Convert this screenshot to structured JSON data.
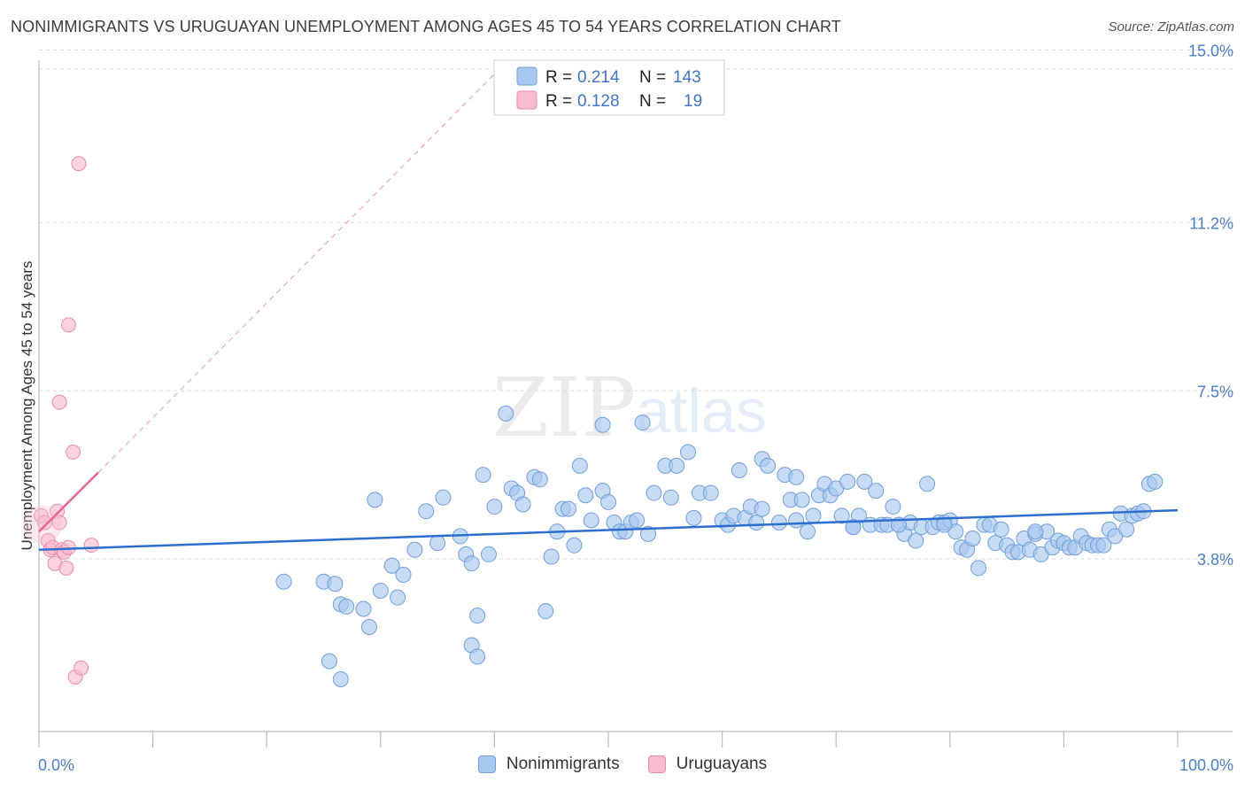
{
  "header": {
    "title": "NONIMMIGRANTS VS URUGUAYAN UNEMPLOYMENT AMONG AGES 45 TO 54 YEARS CORRELATION CHART",
    "source": "Source: ZipAtlas.com"
  },
  "watermark": {
    "zip": "ZIP",
    "atlas": "atlas"
  },
  "legend": {
    "rows": [
      {
        "r_label": "R =",
        "r_value": "0.214",
        "n_label": "N =",
        "n_value": "143"
      },
      {
        "r_label": "R =",
        "r_value": "0.128",
        "n_label": "N =",
        "n_value": "19"
      }
    ]
  },
  "bottom_legend": {
    "items": [
      {
        "label": "Nonimmigrants"
      },
      {
        "label": "Uruguayans"
      }
    ]
  },
  "chart_data": {
    "type": "scatter",
    "title": "NONIMMIGRANTS VS URUGUAYAN UNEMPLOYMENT AMONG AGES 45 TO 54 YEARS CORRELATION CHART",
    "xlabel": "",
    "ylabel": "Unemployment Among Ages 45 to 54 years",
    "xlim": [
      0,
      100
    ],
    "ylim": [
      0,
      15.8
    ],
    "x_tick_labels": [
      "0.0%",
      "100.0%"
    ],
    "y_ticks": [
      3.8,
      7.5,
      11.2,
      15.0
    ],
    "y_tick_labels": [
      "3.8%",
      "7.5%",
      "11.2%",
      "15.0%"
    ],
    "grid": true,
    "legend_position": "top-center",
    "colors": {
      "nonimmigrants_fill": "#a9c8f0",
      "nonimmigrants_stroke": "#6f9fd8",
      "nonimmigrants_line": "#2d6fd0",
      "uruguayans_fill": "#f7bcd0",
      "uruguayans_stroke": "#e98aab",
      "uruguayans_line": "#e8648f",
      "tick_text": "#4a7cc9"
    },
    "series": [
      {
        "name": "Nonimmigrants",
        "R": 0.214,
        "N": 143,
        "trend": {
          "x": [
            0,
            100
          ],
          "y": [
            4.0,
            4.87
          ]
        },
        "points": [
          [
            21.5,
            3.3
          ],
          [
            25.0,
            3.3
          ],
          [
            26.0,
            3.25
          ],
          [
            26.5,
            2.8
          ],
          [
            27.0,
            2.75
          ],
          [
            28.5,
            2.7
          ],
          [
            29.0,
            2.3
          ],
          [
            30.0,
            3.1
          ],
          [
            31.0,
            3.65
          ],
          [
            31.5,
            2.95
          ],
          [
            32.0,
            3.45
          ],
          [
            25.5,
            1.55
          ],
          [
            26.5,
            1.15
          ],
          [
            29.5,
            5.1
          ],
          [
            33.0,
            4.0
          ],
          [
            34.0,
            4.85
          ],
          [
            35.0,
            4.15
          ],
          [
            35.5,
            5.15
          ],
          [
            37.0,
            4.3
          ],
          [
            37.5,
            3.9
          ],
          [
            38.0,
            3.7
          ],
          [
            38.5,
            2.55
          ],
          [
            38.0,
            1.9
          ],
          [
            38.5,
            1.65
          ],
          [
            39.0,
            5.65
          ],
          [
            39.5,
            3.9
          ],
          [
            40.0,
            4.95
          ],
          [
            41.0,
            7.0
          ],
          [
            41.5,
            5.35
          ],
          [
            42.0,
            5.25
          ],
          [
            42.5,
            5.0
          ],
          [
            43.5,
            5.6
          ],
          [
            44.0,
            5.55
          ],
          [
            44.5,
            2.65
          ],
          [
            45.0,
            3.85
          ],
          [
            45.5,
            4.4
          ],
          [
            46.0,
            4.9
          ],
          [
            46.5,
            4.9
          ],
          [
            47.0,
            4.1
          ],
          [
            47.5,
            5.85
          ],
          [
            48.0,
            5.2
          ],
          [
            48.5,
            4.65
          ],
          [
            49.5,
            6.75
          ],
          [
            49.5,
            5.3
          ],
          [
            50.0,
            5.05
          ],
          [
            50.5,
            4.6
          ],
          [
            51.0,
            4.4
          ],
          [
            51.5,
            4.4
          ],
          [
            52.0,
            4.6
          ],
          [
            52.5,
            4.65
          ],
          [
            53.0,
            6.8
          ],
          [
            53.5,
            4.35
          ],
          [
            54.0,
            5.25
          ],
          [
            55.0,
            5.85
          ],
          [
            55.5,
            5.15
          ],
          [
            56.0,
            5.85
          ],
          [
            57.0,
            6.15
          ],
          [
            57.5,
            4.7
          ],
          [
            58.0,
            5.25
          ],
          [
            59.0,
            5.25
          ],
          [
            60.0,
            4.65
          ],
          [
            60.5,
            4.55
          ],
          [
            61.0,
            4.75
          ],
          [
            61.5,
            5.75
          ],
          [
            62.0,
            4.7
          ],
          [
            62.5,
            4.95
          ],
          [
            63.0,
            4.6
          ],
          [
            63.5,
            4.9
          ],
          [
            63.5,
            6.0
          ],
          [
            64.0,
            5.85
          ],
          [
            65.0,
            4.6
          ],
          [
            65.5,
            5.65
          ],
          [
            66.0,
            5.1
          ],
          [
            66.5,
            5.6
          ],
          [
            67.0,
            5.1
          ],
          [
            67.5,
            4.4
          ],
          [
            68.0,
            4.75
          ],
          [
            68.5,
            5.2
          ],
          [
            69.0,
            5.45
          ],
          [
            69.5,
            5.2
          ],
          [
            70.0,
            5.35
          ],
          [
            70.5,
            4.75
          ],
          [
            71.0,
            5.5
          ],
          [
            71.5,
            4.5
          ],
          [
            72.0,
            4.75
          ],
          [
            72.5,
            5.5
          ],
          [
            73.0,
            4.55
          ],
          [
            73.5,
            5.3
          ],
          [
            74.0,
            4.55
          ],
          [
            74.5,
            4.55
          ],
          [
            75.0,
            4.95
          ],
          [
            75.5,
            4.55
          ],
          [
            76.0,
            4.35
          ],
          [
            76.5,
            4.6
          ],
          [
            77.0,
            4.2
          ],
          [
            77.5,
            4.5
          ],
          [
            78.0,
            5.45
          ],
          [
            78.5,
            4.5
          ],
          [
            79.0,
            4.6
          ],
          [
            79.5,
            4.6
          ],
          [
            80.0,
            4.65
          ],
          [
            80.5,
            4.4
          ],
          [
            81.0,
            4.05
          ],
          [
            81.5,
            4.0
          ],
          [
            82.0,
            4.25
          ],
          [
            82.5,
            3.6
          ],
          [
            83.0,
            4.55
          ],
          [
            83.5,
            4.55
          ],
          [
            84.0,
            4.15
          ],
          [
            84.5,
            4.45
          ],
          [
            85.0,
            4.1
          ],
          [
            85.5,
            3.95
          ],
          [
            86.0,
            3.95
          ],
          [
            86.5,
            4.25
          ],
          [
            87.0,
            4.0
          ],
          [
            87.5,
            4.35
          ],
          [
            88.0,
            3.9
          ],
          [
            88.5,
            4.4
          ],
          [
            89.0,
            4.05
          ],
          [
            89.5,
            4.2
          ],
          [
            90.0,
            4.15
          ],
          [
            90.5,
            4.05
          ],
          [
            91.0,
            4.05
          ],
          [
            91.5,
            4.3
          ],
          [
            92.0,
            4.15
          ],
          [
            92.5,
            4.1
          ],
          [
            93.0,
            4.1
          ],
          [
            93.5,
            4.1
          ],
          [
            94.0,
            4.45
          ],
          [
            94.5,
            4.3
          ],
          [
            95.0,
            4.8
          ],
          [
            95.5,
            4.45
          ],
          [
            96.0,
            4.75
          ],
          [
            96.5,
            4.8
          ],
          [
            97.0,
            4.85
          ],
          [
            97.5,
            5.45
          ],
          [
            98.0,
            5.5
          ],
          [
            75.5,
            4.55
          ],
          [
            66.5,
            4.65
          ],
          [
            87.5,
            4.4
          ],
          [
            79.5,
            4.55
          ],
          [
            71.5,
            4.5
          ]
        ]
      },
      {
        "name": "Uruguayans",
        "R": 0.128,
        "N": 19,
        "trend": {
          "x": [
            0,
            5.2
          ],
          "y": [
            4.4,
            5.7
          ]
        },
        "points": [
          [
            0.2,
            4.75
          ],
          [
            0.5,
            4.6
          ],
          [
            0.8,
            4.2
          ],
          [
            1.0,
            4.0
          ],
          [
            1.2,
            4.05
          ],
          [
            1.4,
            3.7
          ],
          [
            1.6,
            4.85
          ],
          [
            1.8,
            4.6
          ],
          [
            2.0,
            4.0
          ],
          [
            2.2,
            3.95
          ],
          [
            2.4,
            3.6
          ],
          [
            2.6,
            4.05
          ],
          [
            1.8,
            7.25
          ],
          [
            2.6,
            8.95
          ],
          [
            3.0,
            6.15
          ],
          [
            3.5,
            12.5
          ],
          [
            3.2,
            1.2
          ],
          [
            3.7,
            1.4
          ],
          [
            4.6,
            4.1
          ]
        ]
      }
    ]
  }
}
